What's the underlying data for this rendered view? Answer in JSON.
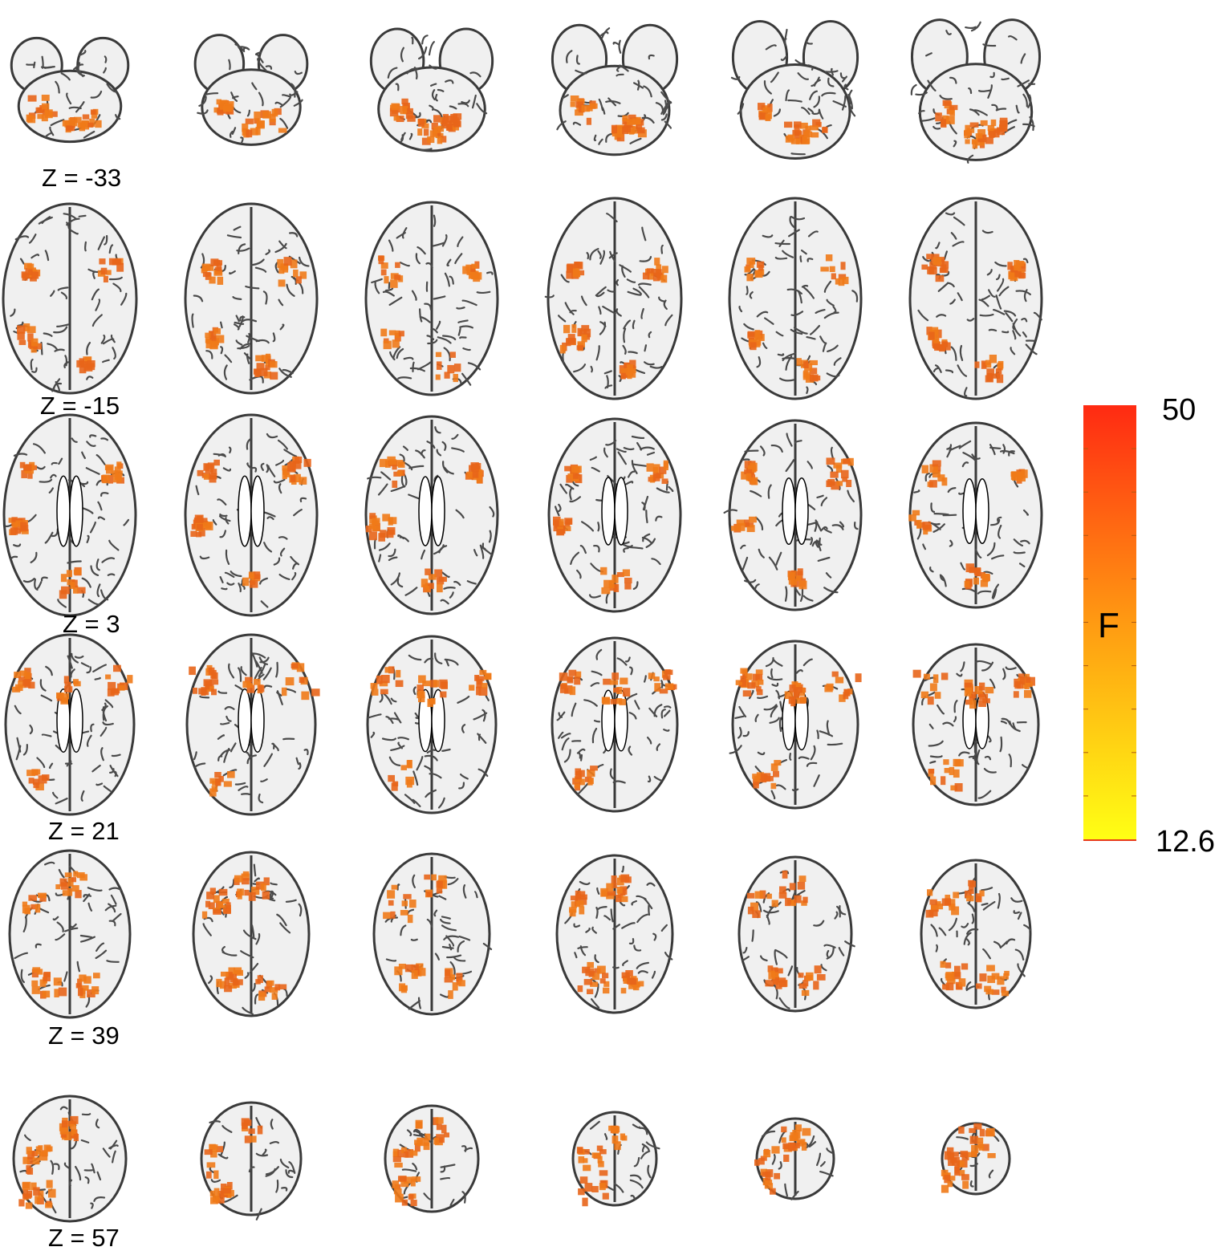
{
  "slice_rows": [
    {
      "z_label": "Z = -33",
      "count": 6
    },
    {
      "z_label": "Z = -15",
      "count": 6
    },
    {
      "z_label": "Z = 3",
      "count": 6
    },
    {
      "z_label": "Z = 21",
      "count": 6
    },
    {
      "z_label": "Z = 39",
      "count": 6
    },
    {
      "z_label": "Z = 57",
      "count": 6
    }
  ],
  "colorbar": {
    "title": "F",
    "max_label": "50",
    "min_label": "12.6",
    "max_color": "#ff2a12",
    "mid_color": "#ff9a12",
    "min_color": "#ffff14"
  },
  "colors": {
    "brain_background": "#f0f0f0",
    "sulci": "#3a3a3a",
    "activation": "#f07a18"
  }
}
